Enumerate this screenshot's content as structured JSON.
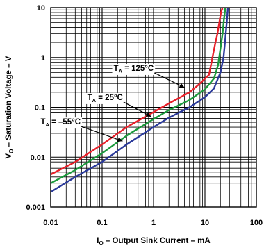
{
  "chart_data": {
    "type": "line",
    "xlabel": {
      "main": "I",
      "sub": "O",
      "rest": " – Output Sink Current – mA"
    },
    "ylabel": {
      "main": "V",
      "sub": "O",
      "rest": " – Saturation Voltage – V"
    },
    "xscale": "log",
    "yscale": "log",
    "xlim": [
      0.01,
      100
    ],
    "ylim": [
      0.001,
      10
    ],
    "x_ticks": [
      "0.01",
      "0.1",
      "1",
      "10",
      "100"
    ],
    "y_ticks": [
      "0.001",
      "0.01",
      "0.1",
      "1",
      "10"
    ],
    "grid": true,
    "series": [
      {
        "name": "T_A = 125°C",
        "label": {
          "t": "T",
          "sub": "A",
          "rest": " = 125°C"
        },
        "color": "#e8202a",
        "x": [
          0.01,
          0.03,
          0.1,
          0.3,
          1,
          2,
          5,
          8,
          12,
          14,
          16,
          17.5,
          19,
          20.5,
          22
        ],
        "y": [
          0.0045,
          0.008,
          0.018,
          0.04,
          0.08,
          0.12,
          0.2,
          0.3,
          0.45,
          1.0,
          2.0,
          3.0,
          5.0,
          8.0,
          10.0
        ]
      },
      {
        "name": "T_A = 25°C",
        "label": {
          "t": "T",
          "sub": "A",
          "rest": " = 25°C"
        },
        "color": "#1a9a3c",
        "x": [
          0.01,
          0.03,
          0.1,
          0.3,
          1,
          2,
          5,
          10,
          15,
          18,
          20,
          22,
          23.5,
          25
        ],
        "y": [
          0.003,
          0.0055,
          0.012,
          0.027,
          0.058,
          0.088,
          0.14,
          0.23,
          0.38,
          0.7,
          1.5,
          3.0,
          6.0,
          10.0
        ]
      },
      {
        "name": "T_A = -55°C",
        "label": {
          "t": "T",
          "sub": "A",
          "rest": " = –55°C"
        },
        "color": "#2b3a9a",
        "x": [
          0.01,
          0.03,
          0.1,
          0.3,
          1,
          2,
          5,
          10,
          15,
          20,
          23,
          25,
          26.5,
          28
        ],
        "y": [
          0.002,
          0.004,
          0.008,
          0.018,
          0.04,
          0.062,
          0.1,
          0.16,
          0.24,
          0.5,
          1.0,
          2.5,
          5.0,
          10.0
        ]
      }
    ],
    "annotations": [
      {
        "series": 0,
        "at_x": 4.0,
        "at_y": 0.25
      },
      {
        "series": 1,
        "at_x": 0.9,
        "at_y": 0.065
      },
      {
        "series": 2,
        "at_x": 0.25,
        "at_y": 0.021
      }
    ]
  }
}
